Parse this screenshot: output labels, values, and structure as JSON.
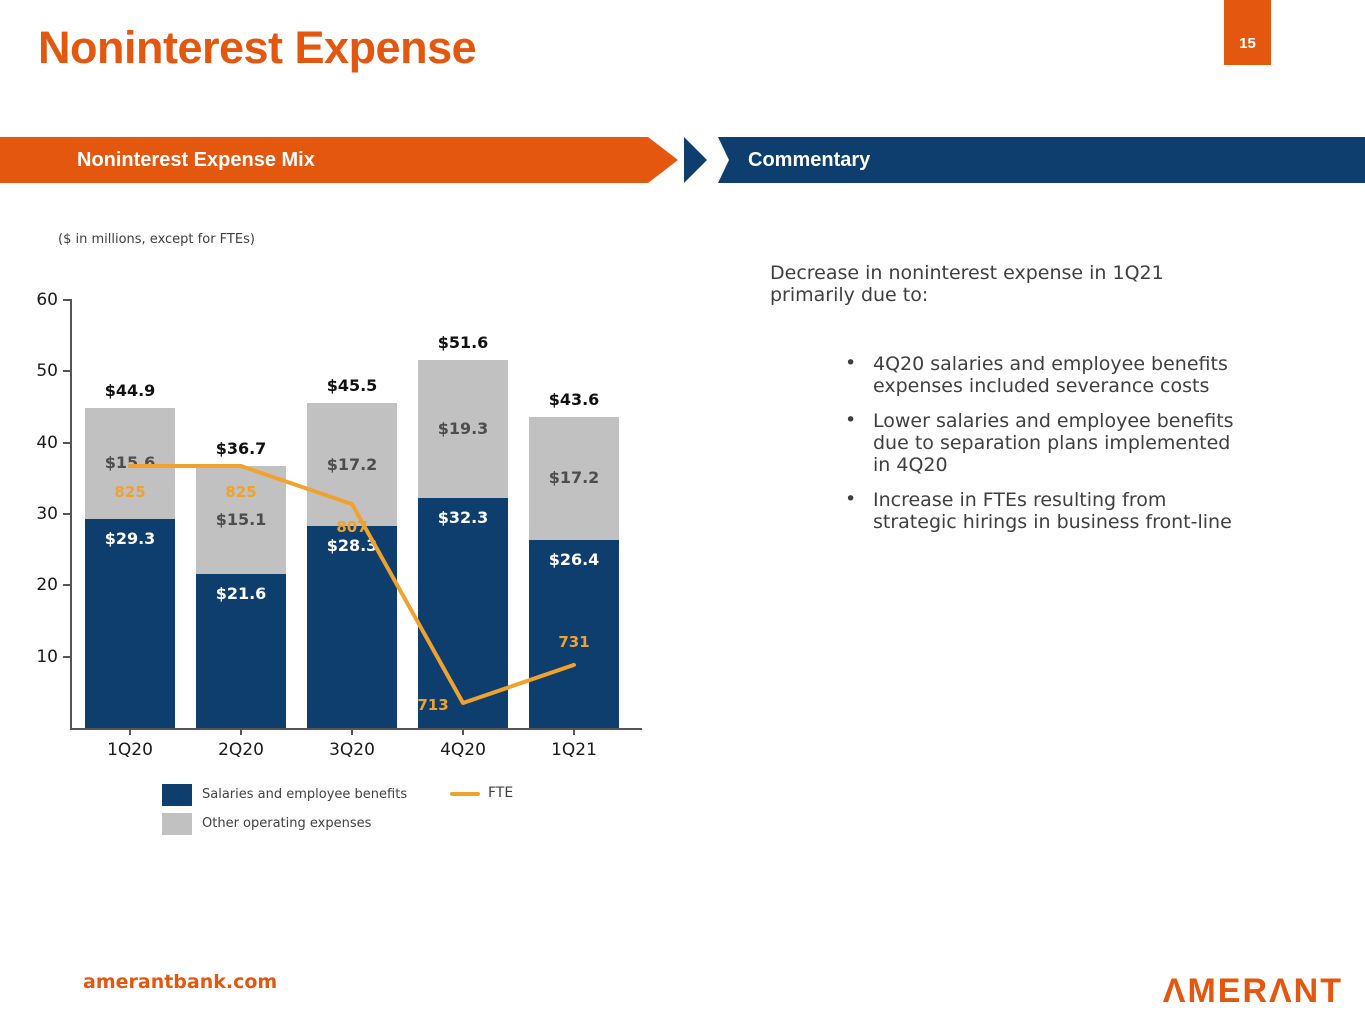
{
  "slide": {
    "title": "Noninterest Expense",
    "page_number": "15",
    "footer_url": "amerantbank.com",
    "logo_text": "ΛMERΛNT"
  },
  "banners": {
    "left_title": "Noninterest Expense Mix",
    "right_title": "Commentary"
  },
  "colors": {
    "orange": "#e4570f",
    "navy": "#0e3e6e",
    "bar_gray": "#c1c1c1",
    "amber": "#f0a22e",
    "commentary_gray": "#3f3f3f"
  },
  "chart_data": {
    "type": "bar",
    "subtype": "stacked-bars-with-line-overlay",
    "subtitle": "($ in millions, except for FTEs)",
    "categories": [
      "1Q20",
      "2Q20",
      "3Q20",
      "4Q20",
      "1Q21"
    ],
    "series": [
      {
        "name": "Salaries and employee benefits",
        "type": "bar",
        "color": "#0e3e6e",
        "values": [
          29.3,
          21.6,
          28.3,
          32.3,
          26.4
        ],
        "labels": [
          "$29.3",
          "$21.6",
          "$28.3",
          "$32.3",
          "$26.4"
        ]
      },
      {
        "name": "Other operating expenses",
        "type": "bar",
        "color": "#c1c1c1",
        "values": [
          15.6,
          15.1,
          17.2,
          19.3,
          17.2
        ],
        "labels": [
          "$15.6",
          "$15.1",
          "$17.2",
          "$19.3",
          "$17.2"
        ]
      },
      {
        "name": "FTE",
        "type": "line",
        "color": "#f0a22e",
        "values": [
          825,
          825,
          807,
          713,
          731
        ],
        "labels": [
          "825",
          "825",
          "807",
          "713",
          "731"
        ]
      }
    ],
    "totals": [
      44.9,
      36.7,
      45.5,
      51.6,
      43.6
    ],
    "total_labels": [
      "$44.9",
      "$36.7",
      "$45.5",
      "$51.6",
      "$43.6"
    ],
    "ylim": [
      0,
      60
    ],
    "yticks": [
      10,
      20,
      30,
      40,
      50,
      60
    ],
    "grid": false,
    "legend_position": "bottom-left"
  },
  "commentary": {
    "heading": "Decrease in noninterest expense in 1Q21\nprimarily due to:",
    "bullet_icon": "•",
    "bullets": [
      "4Q20 salaries and employee benefits\nexpenses included severance costs",
      "Lower salaries and employee benefits\ndue to separation plans implemented\nin 4Q20",
      "Increase in FTEs resulting from\nstrategic hirings in business front-line"
    ]
  }
}
